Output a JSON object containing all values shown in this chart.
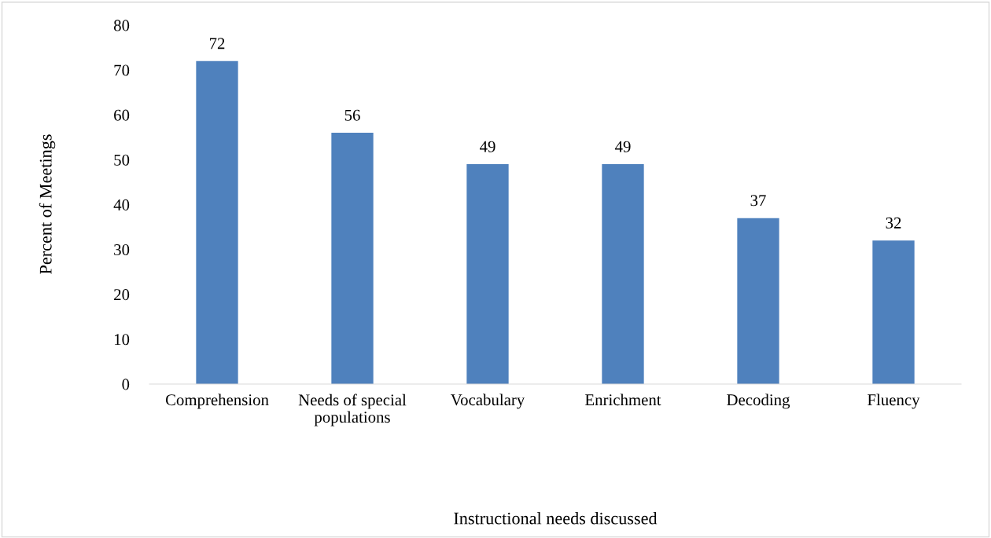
{
  "chart_data": {
    "type": "bar",
    "xlabel": "Instructional needs discussed",
    "ylabel": "Percent of Meetings",
    "categories": [
      "Comprehension",
      "Needs of special\npopulations",
      "Vocabulary",
      "Enrichment",
      "Decoding",
      "Fluency"
    ],
    "values": [
      72,
      56,
      49,
      49,
      37,
      32
    ],
    "color": "#4f81bd",
    "ylim": [
      0,
      80
    ],
    "yticks": [
      0,
      10,
      20,
      30,
      40,
      50,
      60,
      70,
      80
    ],
    "grid": false,
    "data_labels": true
  }
}
